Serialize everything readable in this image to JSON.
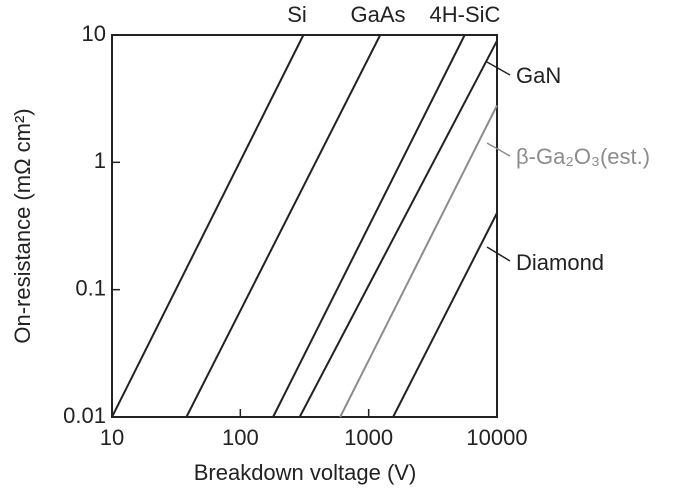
{
  "chart_data": {
    "type": "line",
    "x_label": "Breakdown voltage (V)",
    "y_label": "On-resistance (mΩ cm²)",
    "log_x": true,
    "log_y": true,
    "xlim": [
      10,
      10000
    ],
    "ylim": [
      0.01,
      10
    ],
    "xticks": [
      10,
      100,
      1000,
      10000
    ],
    "yticks": [
      0.01,
      0.1,
      1,
      10
    ],
    "series": [
      {
        "name": "Si",
        "color": "#222222",
        "x": [
          10,
          310
        ],
        "values": [
          0.01,
          10
        ]
      },
      {
        "name": "GaAs",
        "color": "#222222",
        "x": [
          38,
          1230
        ],
        "values": [
          0.01,
          10
        ]
      },
      {
        "name": "4H-SiC",
        "color": "#222222",
        "x": [
          180,
          5600
        ],
        "values": [
          0.01,
          10
        ]
      },
      {
        "name": "GaN",
        "color": "#222222",
        "x": [
          290,
          10000
        ],
        "values": [
          0.01,
          9
        ]
      },
      {
        "name": "β-Ga₂O₃(est.)",
        "color": "#8c8c8c",
        "x": [
          600,
          10000
        ],
        "values": [
          0.01,
          2.8
        ]
      },
      {
        "name": "Diamond",
        "color": "#222222",
        "x": [
          1550,
          10000
        ],
        "values": [
          0.01,
          0.4
        ]
      }
    ]
  }
}
